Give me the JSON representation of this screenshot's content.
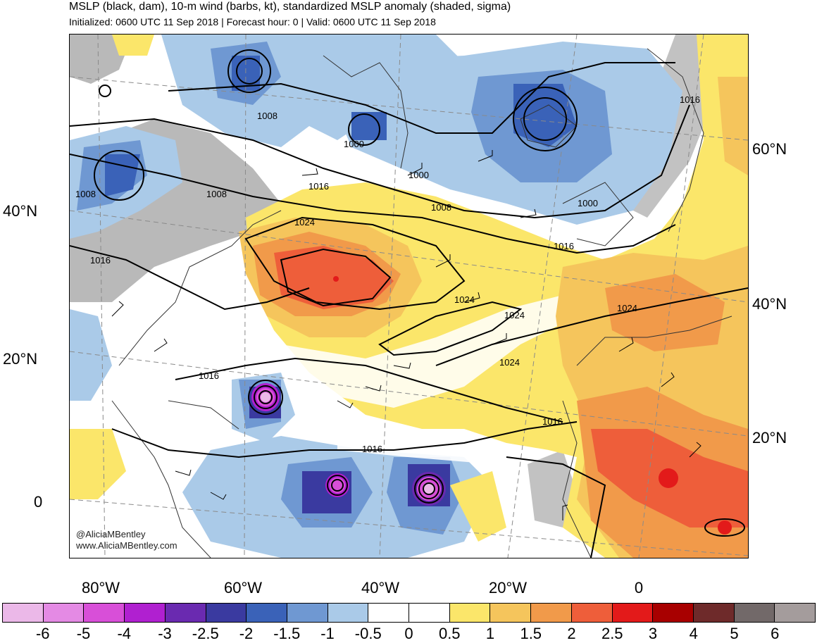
{
  "title": "MSLP (black, dam), 10-m wind (barbs, kt), standardized MSLP anomaly (shaded, sigma)",
  "subtitle": "Initialized: 0600 UTC 11 Sep 2018 | Forecast hour: 0 | Valid: 0600 UTC 11 Sep 2018",
  "credits": {
    "handle": "@AliciaMBentley",
    "site": "www.AliciaMBentley.com"
  },
  "left_lat_labels": [
    "40°N",
    "20°N",
    "0"
  ],
  "right_lat_labels": [
    "60°N",
    "40°N",
    "20°N"
  ],
  "lon_labels": [
    "80°W",
    "60°W",
    "40°W",
    "20°W",
    "0"
  ],
  "isobar_labels": [
    "1008",
    "1008",
    "1000",
    "1000",
    "1008",
    "1000",
    "1016",
    "1016",
    "1008",
    "1024",
    "1016",
    "1024",
    "1024",
    "1024",
    "1024",
    "1016",
    "1016",
    "1016",
    "1016"
  ],
  "colorbar": {
    "colors": [
      "#ebb8e8",
      "#e48ae4",
      "#d84fd8",
      "#b020d0",
      "#6a2ab0",
      "#3a3aa0",
      "#3a62b8",
      "#6f98d2",
      "#aacae8",
      "#ffffff",
      "#ffffff",
      "#fbe66a",
      "#f5c55c",
      "#f19a4a",
      "#ee5e3a",
      "#e31a1a",
      "#a80000",
      "#6e2a2a",
      "#726969",
      "#a49c9c"
    ],
    "ticks": [
      "-6",
      "-5",
      "-4",
      "-3",
      "-2.5",
      "-2",
      "-1.5",
      "-1",
      "-0.5",
      "0",
      "0.5",
      "1",
      "1.5",
      "2",
      "2.5",
      "3",
      "4",
      "5",
      "6"
    ]
  }
}
